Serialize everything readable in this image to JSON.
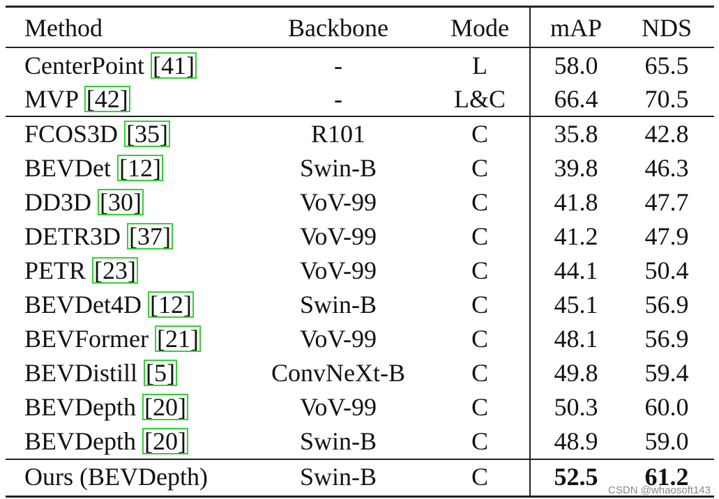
{
  "table": {
    "header": [
      "Method",
      "Backbone",
      "Mode",
      "mAP",
      "NDS"
    ],
    "groups": [
      [
        {
          "method": "CenterPoint",
          "ref": "[41]",
          "backbone": "-",
          "mode": "L",
          "map": "58.0",
          "nds": "65.5"
        },
        {
          "method": "MVP",
          "ref": "[42]",
          "backbone": "-",
          "mode": "L&C",
          "map": "66.4",
          "nds": "70.5"
        }
      ],
      [
        {
          "method": "FCOS3D",
          "ref": "[35]",
          "backbone": "R101",
          "mode": "C",
          "map": "35.8",
          "nds": "42.8"
        },
        {
          "method": "BEVDet",
          "ref": "[12]",
          "backbone": "Swin-B",
          "mode": "C",
          "map": "39.8",
          "nds": "46.3"
        },
        {
          "method": "DD3D",
          "ref": "[30]",
          "backbone": "VoV-99",
          "mode": "C",
          "map": "41.8",
          "nds": "47.7"
        },
        {
          "method": "DETR3D",
          "ref": "[37]",
          "backbone": "VoV-99",
          "mode": "C",
          "map": "41.2",
          "nds": "47.9"
        },
        {
          "method": "PETR",
          "ref": "[23]",
          "backbone": "VoV-99",
          "mode": "C",
          "map": "44.1",
          "nds": "50.4"
        },
        {
          "method": "BEVDet4D",
          "ref": "[12]",
          "backbone": "Swin-B",
          "mode": "C",
          "map": "45.1",
          "nds": "56.9"
        },
        {
          "method": "BEVFormer",
          "ref": "[21]",
          "backbone": "VoV-99",
          "mode": "C",
          "map": "48.1",
          "nds": "56.9"
        },
        {
          "method": "BEVDistill",
          "ref": "[5]",
          "backbone": "ConvNeXt-B",
          "mode": "C",
          "map": "49.8",
          "nds": "59.4"
        },
        {
          "method": "BEVDepth",
          "ref": "[20]",
          "backbone": "VoV-99",
          "mode": "C",
          "map": "50.3",
          "nds": "60.0"
        },
        {
          "method": "BEVDepth",
          "ref": "[20]",
          "backbone": "Swin-B",
          "mode": "C",
          "map": "48.9",
          "nds": "59.0"
        }
      ],
      [
        {
          "method": "Ours (BEVDepth)",
          "backbone": "Swin-B",
          "mode": "C",
          "map": "52.5",
          "nds": "61.2",
          "bold": true
        }
      ]
    ],
    "watermark": "CSDN @whaosoft143"
  }
}
